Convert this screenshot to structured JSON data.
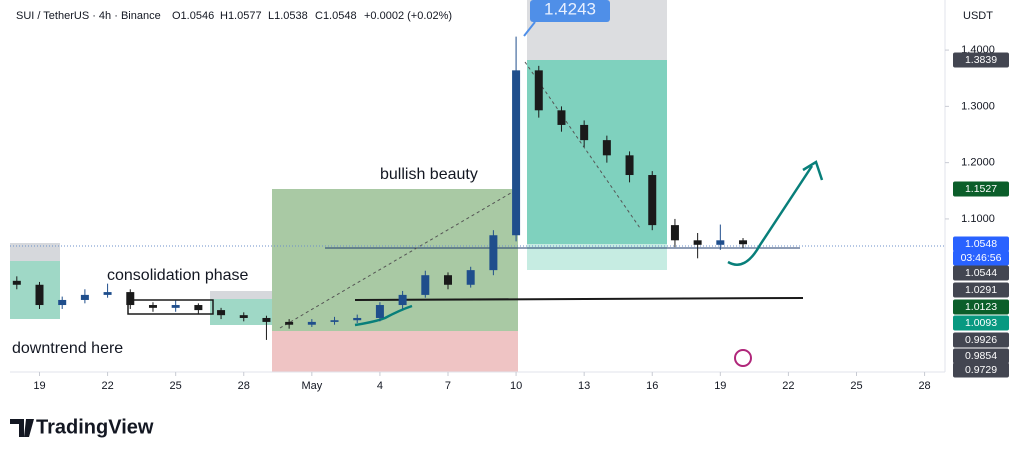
{
  "header": {
    "symbol": "SUI / TetherUS · 4h · Binance",
    "open": "O1.0546",
    "high": "H1.0577",
    "low": "L1.0538",
    "close": "C1.0548",
    "change": "+0.0002 (+0.02%)",
    "currency": "USDT"
  },
  "chart_data": {
    "type": "candlestick",
    "annotations": [
      "consolidation phase",
      "downtrend here",
      "bullish beauty"
    ],
    "peak_label": "1.4243",
    "x": [
      18,
      19,
      20,
      21,
      22,
      23,
      24,
      25,
      26,
      27,
      28,
      29,
      30,
      31,
      32,
      33,
      34,
      35,
      36,
      37,
      38,
      39,
      40,
      41,
      42,
      43,
      44,
      45,
      46,
      47,
      48,
      49,
      50
    ],
    "open": [
      0.99,
      0.983,
      0.947,
      0.956,
      0.965,
      0.97,
      0.947,
      0.942,
      0.947,
      0.938,
      0.929,
      0.924,
      0.917,
      0.912,
      0.917,
      0.92,
      0.924,
      0.947,
      0.965,
      1.0,
      0.983,
      1.009,
      1.071,
      1.364,
      1.293,
      1.267,
      1.24,
      1.213,
      1.178,
      1.089,
      1.062,
      1.054,
      1.062
    ],
    "high": [
      0.998,
      0.988,
      0.962,
      0.975,
      0.985,
      0.975,
      0.952,
      0.955,
      0.95,
      0.942,
      0.934,
      0.928,
      0.922,
      0.922,
      0.926,
      0.93,
      0.952,
      0.972,
      1.008,
      1.005,
      1.015,
      1.08,
      1.424,
      1.372,
      1.3,
      1.275,
      1.248,
      1.22,
      1.185,
      1.1,
      1.075,
      1.09,
      1.066
    ],
    "low": [
      0.975,
      0.94,
      0.94,
      0.95,
      0.96,
      0.94,
      0.935,
      0.935,
      0.932,
      0.922,
      0.918,
      0.885,
      0.905,
      0.908,
      0.912,
      0.915,
      0.918,
      0.94,
      0.96,
      0.975,
      0.978,
      1.0,
      1.06,
      1.28,
      1.255,
      1.228,
      1.2,
      1.165,
      1.08,
      1.05,
      1.03,
      1.045,
      1.048
    ],
    "close": [
      0.983,
      0.947,
      0.956,
      0.965,
      0.97,
      0.947,
      0.942,
      0.947,
      0.938,
      0.929,
      0.924,
      0.917,
      0.912,
      0.917,
      0.92,
      0.924,
      0.947,
      0.965,
      1.0,
      0.983,
      1.009,
      1.071,
      1.364,
      1.293,
      1.267,
      1.24,
      1.213,
      1.178,
      1.089,
      1.062,
      1.054,
      1.062,
      1.055
    ],
    "up_color": "#1f4e8c",
    "down_color": "#1a1a1a",
    "xlim": [
      17.7,
      58.9
    ],
    "xticks": [
      19,
      22,
      25,
      28,
      {
        "value": 31,
        "label": "May"
      },
      {
        "value": 34,
        "label": "4"
      },
      {
        "value": 37,
        "label": "7"
      },
      {
        "value": 40,
        "label": "10"
      },
      {
        "value": 43,
        "label": "13"
      },
      {
        "value": 46,
        "label": "16"
      },
      {
        "value": 49,
        "label": "19"
      },
      {
        "value": 52,
        "label": "22"
      },
      {
        "value": 55,
        "label": "25"
      },
      {
        "value": 58,
        "label": "28"
      }
    ],
    "ylim": [
      0.828,
      1.489
    ],
    "yticks": [
      {
        "value": 1.1,
        "label": "1.1000"
      },
      {
        "value": 1.2,
        "label": "1.2000"
      },
      {
        "value": 1.3,
        "label": "1.3000"
      },
      {
        "value": 1.4,
        "label": "1.4000"
      }
    ],
    "price_badges": [
      {
        "text": "1.3839",
        "color": "#434651"
      },
      {
        "text": "1.1527",
        "color": "#0b5e2a"
      },
      {
        "text": "1.0548",
        "color": "#2962ff"
      },
      {
        "text": "03:46:56",
        "color": "#2962ff"
      },
      {
        "text": "1.0544",
        "color": "#434651"
      },
      {
        "text": "1.0291",
        "color": "#434651"
      },
      {
        "text": "1.0123",
        "color": "#0b5e2a"
      },
      {
        "text": "1.0093",
        "color": "#089981"
      },
      {
        "text": "0.9926",
        "color": "#434651"
      },
      {
        "text": "0.9854",
        "color": "#434651"
      },
      {
        "text": "0.9729",
        "color": "#434651"
      }
    ]
  },
  "footer": {
    "brand": "TradingView"
  }
}
